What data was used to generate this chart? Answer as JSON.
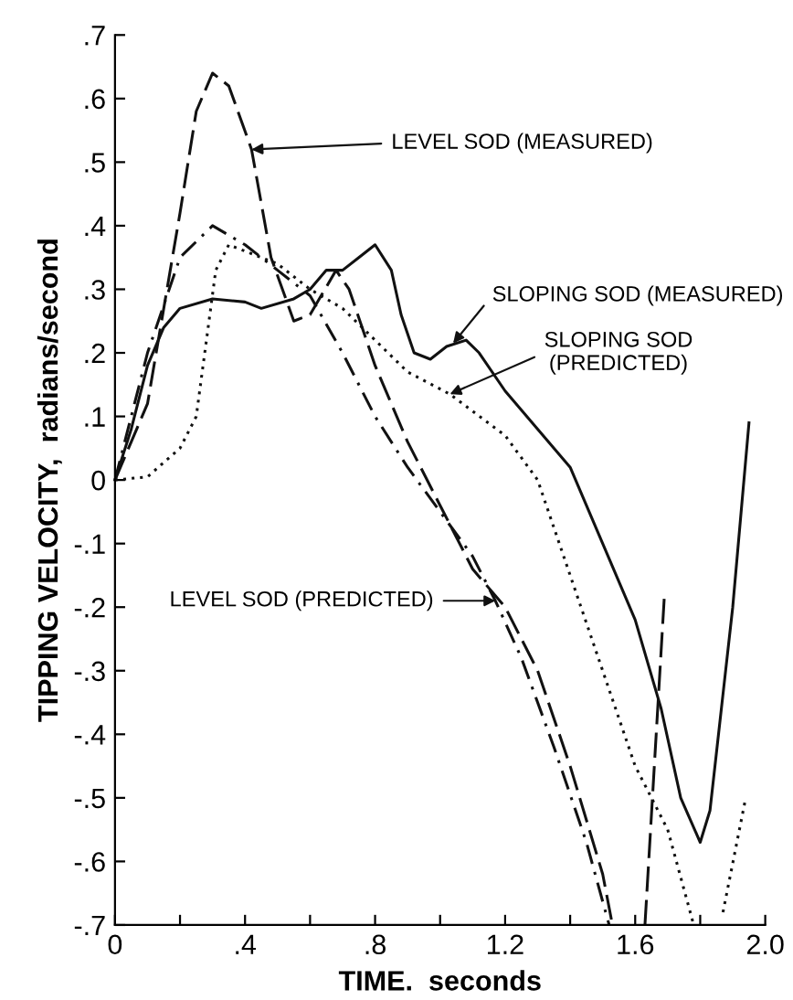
{
  "chart_data": {
    "type": "line",
    "xlabel": "TIME.  seconds",
    "ylabel": "TIPPING VELOCITY,  radians/second",
    "xlim": [
      0,
      2.0
    ],
    "ylim": [
      -0.7,
      0.7
    ],
    "xticks": [
      {
        "value": 0,
        "label": "0"
      },
      {
        "value": 0.2,
        "label": null
      },
      {
        "value": 0.4,
        "label": ".4"
      },
      {
        "value": 0.6,
        "label": null
      },
      {
        "value": 0.8,
        "label": ".8"
      },
      {
        "value": 1.0,
        "label": null
      },
      {
        "value": 1.2,
        "label": "1.2"
      },
      {
        "value": 1.4,
        "label": null
      },
      {
        "value": 1.6,
        "label": "1.6"
      },
      {
        "value": 1.8,
        "label": null
      },
      {
        "value": 2.0,
        "label": "2.0"
      }
    ],
    "yticks": [
      {
        "value": -0.7,
        "label": "-.7"
      },
      {
        "value": -0.6,
        "label": "-.6"
      },
      {
        "value": -0.5,
        "label": "-.5"
      },
      {
        "value": -0.4,
        "label": "-.4"
      },
      {
        "value": -0.3,
        "label": "-.3"
      },
      {
        "value": -0.2,
        "label": "-.2"
      },
      {
        "value": -0.1,
        "label": "-.1"
      },
      {
        "value": 0,
        "label": "0"
      },
      {
        "value": 0.1,
        "label": ".1"
      },
      {
        "value": 0.2,
        "label": ".2"
      },
      {
        "value": 0.3,
        "label": ".3"
      },
      {
        "value": 0.4,
        "label": ".4"
      },
      {
        "value": 0.5,
        "label": ".5"
      },
      {
        "value": 0.6,
        "label": ".6"
      },
      {
        "value": 0.7,
        "label": ".7"
      }
    ],
    "grid": false,
    "marker": "none",
    "series": [
      {
        "color": "#111111",
        "line_style": "dashed",
        "x": [
          0,
          0.1,
          0.2,
          0.25,
          0.3,
          0.35,
          0.42,
          0.48,
          0.55,
          0.6,
          0.68,
          0.72,
          0.8,
          0.9,
          1.0,
          1.1,
          1.2,
          1.3,
          1.4,
          1.5,
          1.53,
          1.58,
          1.63,
          1.69
        ],
        "values": [
          0,
          0.12,
          0.42,
          0.58,
          0.64,
          0.62,
          0.52,
          0.35,
          0.25,
          0.26,
          0.33,
          0.3,
          0.18,
          0.06,
          -0.04,
          -0.14,
          -0.2,
          -0.3,
          -0.45,
          -0.62,
          -0.7,
          null,
          -0.7,
          -0.18
        ]
      },
      {
        "color": "#111111",
        "line_style": "dashdot",
        "x": [
          0,
          0.1,
          0.2,
          0.3,
          0.4,
          0.5,
          0.6,
          0.7,
          0.8,
          0.9,
          1.0,
          1.1,
          1.17,
          1.25,
          1.35,
          1.45,
          1.52
        ],
        "values": [
          0,
          0.2,
          0.35,
          0.4,
          0.37,
          0.33,
          0.29,
          0.2,
          0.1,
          0.02,
          -0.05,
          -0.12,
          -0.19,
          -0.28,
          -0.42,
          -0.57,
          -0.7
        ]
      },
      {
        "color": "#111111",
        "line_style": "solid",
        "x": [
          0,
          0.05,
          0.1,
          0.15,
          0.2,
          0.3,
          0.4,
          0.45,
          0.55,
          0.6,
          0.65,
          0.7,
          0.75,
          0.8,
          0.85,
          0.88,
          0.92,
          0.97,
          1.02,
          1.08,
          1.12,
          1.2,
          1.3,
          1.4,
          1.5,
          1.6,
          1.68,
          1.74,
          1.8,
          1.83,
          1.9,
          1.95
        ],
        "values": [
          0,
          0.08,
          0.18,
          0.24,
          0.27,
          0.285,
          0.28,
          0.27,
          0.285,
          0.3,
          0.33,
          0.33,
          0.35,
          0.37,
          0.33,
          0.26,
          0.2,
          0.19,
          0.21,
          0.22,
          0.2,
          0.14,
          0.08,
          0.02,
          -0.1,
          -0.22,
          -0.36,
          -0.5,
          -0.57,
          -0.52,
          -0.2,
          0.09
        ]
      },
      {
        "color": "#111111",
        "line_style": "dotted",
        "x": [
          0,
          0.1,
          0.2,
          0.25,
          0.31,
          0.35,
          0.5,
          0.6,
          0.7,
          0.8,
          0.9,
          1.03,
          1.2,
          1.3,
          1.4,
          1.5,
          1.6,
          1.7,
          1.78,
          1.82,
          1.87,
          1.94
        ],
        "values": [
          0,
          0.005,
          0.05,
          0.1,
          0.33,
          0.37,
          0.34,
          0.3,
          0.27,
          0.22,
          0.17,
          0.135,
          0.07,
          0.0,
          -0.15,
          -0.3,
          -0.45,
          -0.55,
          -0.7,
          null,
          -0.68,
          -0.5
        ]
      }
    ],
    "annotations": [
      {
        "text": "LEVEL SOD (MEASURED)",
        "x": 0.42,
        "y": 0.52
      },
      {
        "text": "SLOPING SOD (MEASURED)",
        "x": 1.04,
        "y": 0.215
      },
      {
        "text": "SLOPING SOD\n(PREDICTED)",
        "x": 1.03,
        "y": 0.135
      },
      {
        "text": "LEVEL SOD (PREDICTED)",
        "x": 1.17,
        "y": -0.19
      }
    ]
  }
}
